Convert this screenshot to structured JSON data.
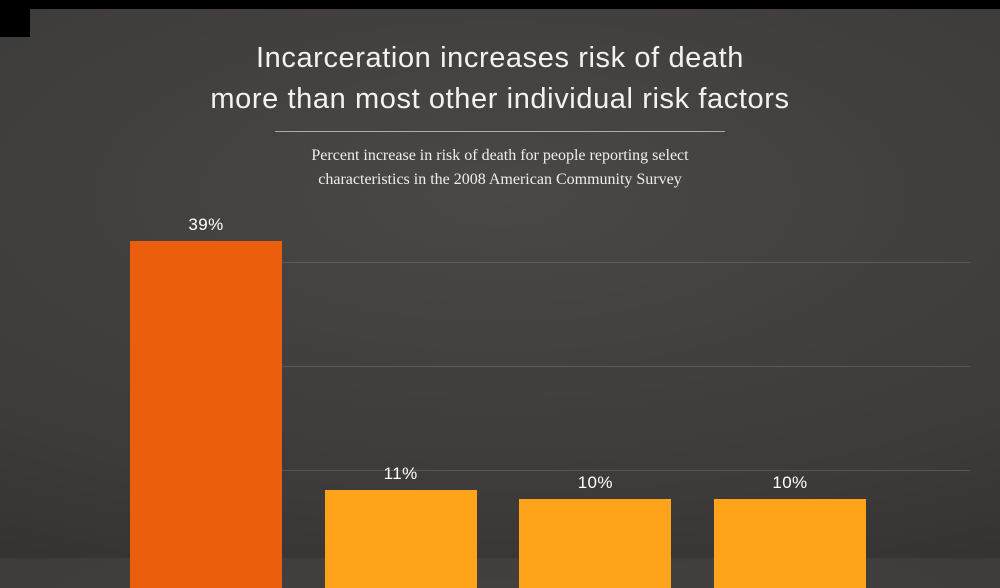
{
  "page": {
    "background_color": "#3d3b3a",
    "letterbox_color": "#000000"
  },
  "title": {
    "line1": "Incarceration increases risk of death",
    "line2": "more than most other individual risk factors"
  },
  "subtitle": {
    "line1": "Percent increase in risk of death for people reporting select",
    "line2": "characteristics in the 2008 American Community Survey"
  },
  "chart_data": {
    "type": "bar",
    "title": "Incarceration increases risk of death more than most other individual risk factors",
    "subtitle": "Percent increase in risk of death for people reporting select characteristics in the 2008 American Community Survey",
    "values": [
      39,
      11,
      10,
      10
    ],
    "data_labels": [
      "39%",
      "11%",
      "10%",
      "10%"
    ],
    "bar_colors": [
      "#ea5e0d",
      "#ffa31a",
      "#ffa31a",
      "#ffa31a"
    ],
    "unit": "percent increase in risk of death",
    "label_color": "#ffffff",
    "categories_visible": false,
    "axes": {
      "x_ticks_visible": false,
      "y_ticks_visible": false
    },
    "grid": {
      "horizontal": true,
      "color": "rgba(255,255,255,0.14)"
    },
    "legend": "none",
    "baseline_cropped": true
  }
}
